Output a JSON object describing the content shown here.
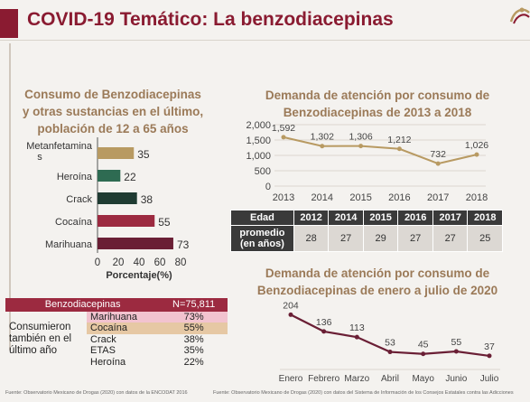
{
  "header": {
    "title": "COVID-19 Temático: La benzodiacepinas"
  },
  "chart_left": {
    "title_lines": [
      "Consumo de Benzodiacepinas",
      "y otras sustancias en el último,",
      "población de 12 a 65 años"
    ]
  },
  "chart_right_top": {
    "title_lines": [
      "Demanda de atención por consumo de",
      "Benzodiacepinas de 2013 a 2018"
    ]
  },
  "chart_right_bottom": {
    "title_lines": [
      "Demanda de atención por consumo de",
      "Benzodiacepinas de enero a julio de 2020"
    ]
  },
  "chart_data": [
    {
      "type": "bar",
      "orientation": "horizontal",
      "title": "Consumo de Benzodiacepinas y otras sustancias en el último, población de 12 a 65 años",
      "categories": [
        "Metanfetaminas",
        "Heroína",
        "Crack",
        "Cocaína",
        "Marihuana"
      ],
      "category_labels": [
        [
          "Metanfetamina",
          "s"
        ],
        [
          "Heroína"
        ],
        [
          "Crack"
        ],
        [
          "Cocaína"
        ],
        [
          "Marihuana"
        ]
      ],
      "values": [
        35,
        22,
        38,
        55,
        73
      ],
      "colors": [
        "#b89a62",
        "#2e6b52",
        "#1f3b32",
        "#9c2a40",
        "#6a1f35"
      ],
      "xlabel": "Porcentaje(%)",
      "xlim": [
        0,
        80
      ],
      "xticks": [
        0,
        20,
        40,
        60,
        80
      ]
    },
    {
      "type": "line",
      "title": "Demanda de atención por consumo de Benzodiacepinas de 2013 a 2018",
      "x": [
        "2013",
        "2014",
        "2015",
        "2016",
        "2017",
        "2018"
      ],
      "values": [
        1592,
        1302,
        1306,
        1212,
        732,
        1026
      ],
      "data_labels": [
        "1,592",
        "1,302",
        "1,306",
        "1,212",
        "732",
        "1,026"
      ],
      "ylim": [
        0,
        2000
      ],
      "yticks": [
        "0",
        "500",
        "1,000",
        "1,500",
        "2,000"
      ],
      "color": "#b89a62"
    },
    {
      "type": "line",
      "title": "Demanda de atención por consumo de Benzodiacepinas de enero a julio de 2020",
      "x": [
        "Enero",
        "Febrero",
        "Marzo",
        "Abril",
        "Mayo",
        "Junio",
        "Julio"
      ],
      "values": [
        204,
        136,
        113,
        53,
        45,
        55,
        37
      ],
      "ylim": [
        0,
        220
      ],
      "color": "#6a1f35"
    }
  ],
  "edad_table": {
    "header_label": "Edad",
    "row_label_lines": [
      "promedio",
      "(en años)"
    ],
    "years": [
      "2012",
      "2014",
      "2015",
      "2016",
      "2017",
      "2018"
    ],
    "values": [
      "28",
      "27",
      "29",
      "27",
      "27",
      "25"
    ]
  },
  "benzo_table": {
    "header_left": "Benzodiacepinas",
    "header_right": "N=75,811",
    "row_label_lines": [
      "Consumieron",
      "también en el",
      "último año"
    ],
    "rows": [
      {
        "name": "Marihuana",
        "value": "73%"
      },
      {
        "name": "Cocaína",
        "value": "55%"
      },
      {
        "name": "Crack",
        "value": "38%"
      },
      {
        "name": "ETAS",
        "value": "35%"
      },
      {
        "name": "Heroína",
        "value": "22%"
      }
    ]
  },
  "footer": {
    "left": "Fuente: Observatorio Mexicano de Drogas (2020) con datos de la ENCODAT 2016",
    "right": "Fuente: Observatorio Mexicano de Drogas (2020) con datos del Sistema de Información de los Consejos Estatales contra las Adicciones"
  },
  "colors": {
    "accent": "#8a1b31",
    "gold": "#b89a62"
  }
}
